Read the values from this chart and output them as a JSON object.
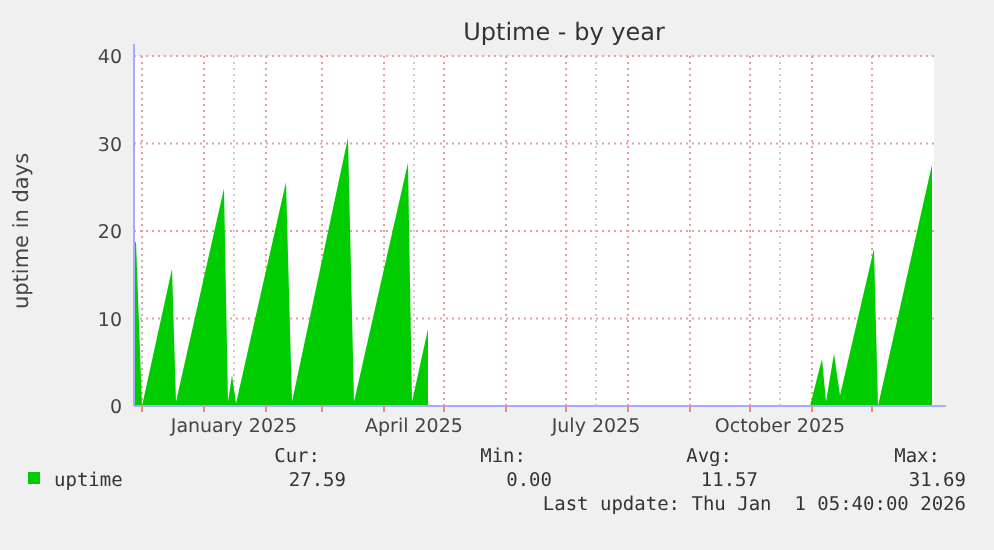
{
  "chart_data": {
    "type": "area",
    "title": "Uptime - by year",
    "ylabel": "uptime in days",
    "x": [
      "2024-11-27",
      "2024-11-28",
      "2024-12-01",
      "2024-12-16",
      "2024-12-18",
      "2025-01-11",
      "2025-01-13",
      "2025-01-15",
      "2025-01-17",
      "2025-02-11",
      "2025-02-14",
      "2025-03-14",
      "2025-03-17",
      "2025-04-13",
      "2025-04-15",
      "2025-04-23",
      "2025-04-24",
      "2025-10-31",
      "2025-11-06",
      "2025-11-08",
      "2025-11-12",
      "2025-11-15",
      "2025-12-02",
      "2025-12-04",
      "2025-12-31"
    ],
    "series": [
      {
        "name": "uptime",
        "color": "#00cc00",
        "values": [
          18.5,
          18.8,
          0,
          15.7,
          0.5,
          24.9,
          0.5,
          3.5,
          0.3,
          25.6,
          0.5,
          30.7,
          0.5,
          27.8,
          0.5,
          8.8,
          null,
          0,
          5.4,
          0.5,
          6.0,
          1.2,
          18.0,
          0,
          27.6
        ]
      }
    ],
    "xlim": [
      "2024-11-27",
      "2026-01-01"
    ],
    "xticks": [
      {
        "value": "2024-12-01",
        "label": null
      },
      {
        "value": "2025-01-01",
        "label": null
      },
      {
        "value": "2025-01-16",
        "label": "January 2025"
      },
      {
        "value": "2025-02-01",
        "label": null
      },
      {
        "value": "2025-03-01",
        "label": null
      },
      {
        "value": "2025-04-01",
        "label": null
      },
      {
        "value": "2025-04-16",
        "label": "April 2025"
      },
      {
        "value": "2025-05-01",
        "label": null
      },
      {
        "value": "2025-06-01",
        "label": null
      },
      {
        "value": "2025-07-01",
        "label": null
      },
      {
        "value": "2025-07-16",
        "label": "July 2025"
      },
      {
        "value": "2025-08-01",
        "label": null
      },
      {
        "value": "2025-09-01",
        "label": null
      },
      {
        "value": "2025-10-01",
        "label": null
      },
      {
        "value": "2025-10-16",
        "label": "October 2025"
      },
      {
        "value": "2025-11-01",
        "label": null
      },
      {
        "value": "2025-12-01",
        "label": null
      }
    ],
    "ylim": [
      0,
      40
    ],
    "yticks": [
      0,
      10,
      20,
      30,
      40
    ],
    "grid": true,
    "legend": "bottom",
    "annotations": [
      "Cur:",
      "Min:",
      "Avg:",
      "Max:",
      "27.59",
      "0.00",
      "11.57",
      "31.69",
      "Last update: Thu Jan  1 05:40:00 2026"
    ]
  }
}
